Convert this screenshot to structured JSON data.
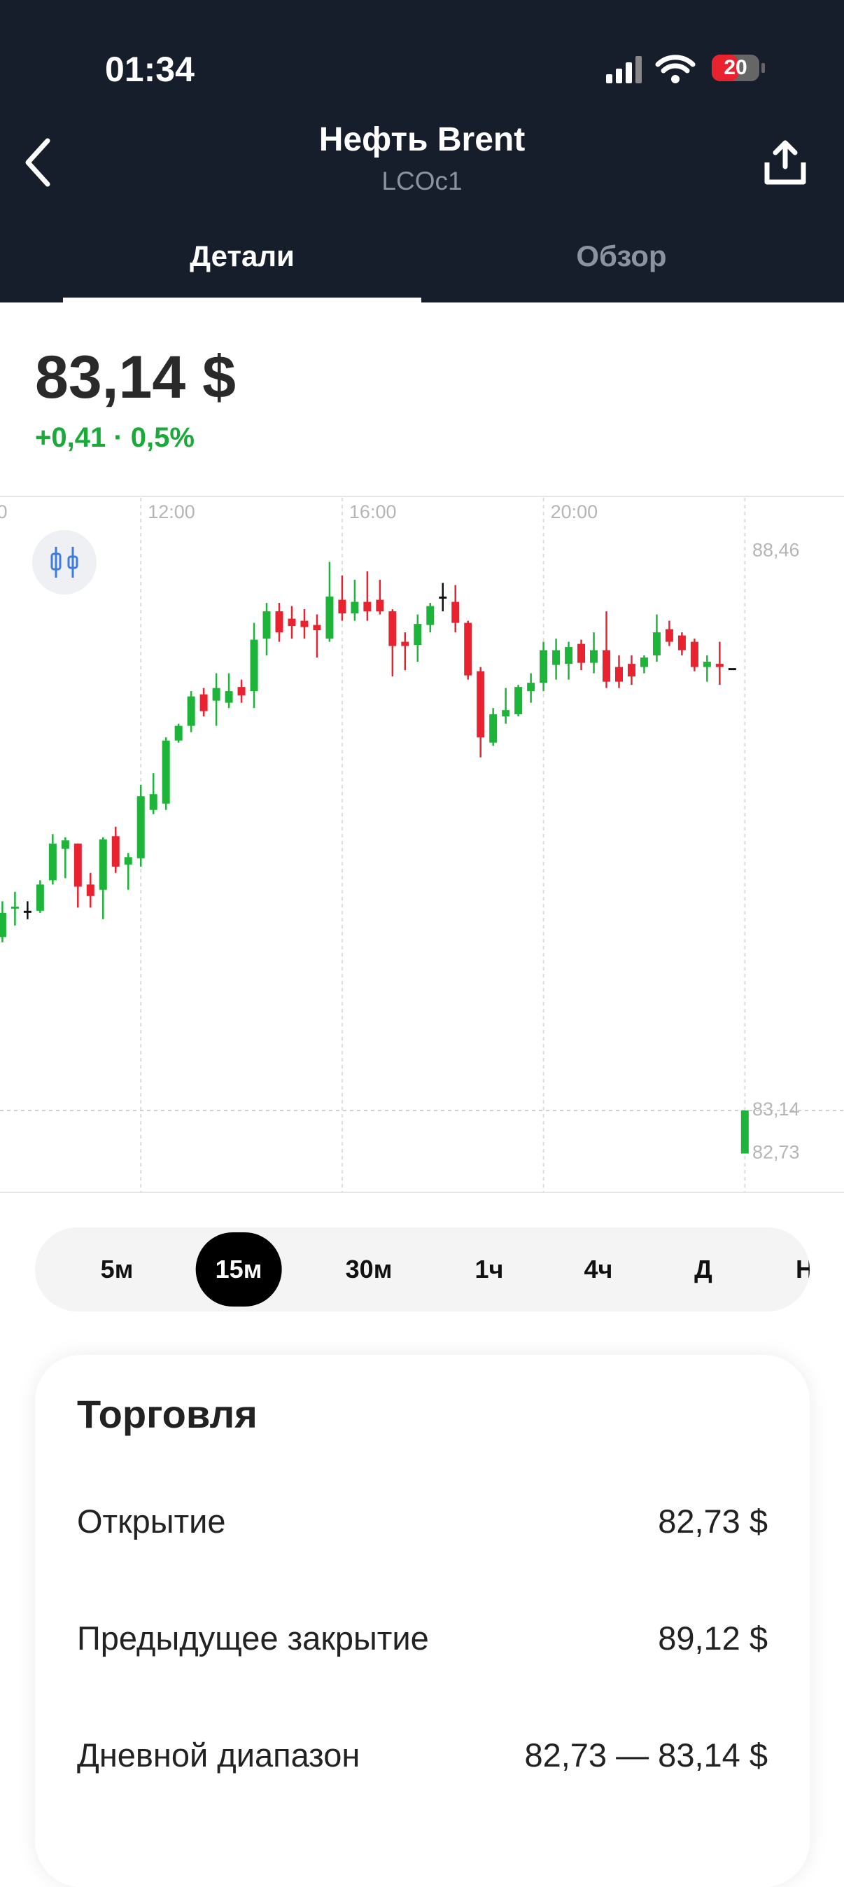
{
  "status_bar": {
    "time": "01:34",
    "battery": "20"
  },
  "header": {
    "title": "Нефть Brent",
    "subtitle": "LCOc1"
  },
  "tabs": [
    "Детали",
    "Обзор"
  ],
  "quote": {
    "price": "83,14 $",
    "change": "+0,41 · 0,5%"
  },
  "chart_data": {
    "type": "candlestick",
    "up_color": "#1db43a",
    "down_color": "#e8232f",
    "flat_color": "#111111",
    "xlim": [
      -0.19,
      66.88
    ],
    "ylim": [
      82.36,
      88.97
    ],
    "xticks": [
      {
        "value": -1,
        "label": "0"
      },
      {
        "value": 11,
        "label": "12:00"
      },
      {
        "value": 27,
        "label": "16:00"
      },
      {
        "value": 43,
        "label": "20:00"
      }
    ],
    "yticks": [
      {
        "value": 88.46,
        "label": "88,46"
      },
      {
        "value": 83.14,
        "label": "83,14"
      },
      {
        "value": 82.73,
        "label": "82,73"
      }
    ],
    "candles": [
      [
        84.79,
        85.13,
        84.74,
        85.02
      ],
      [
        85.07,
        85.22,
        84.9,
        85.08
      ],
      [
        85.04,
        85.13,
        84.96,
        85.04
      ],
      [
        85.04,
        85.33,
        85.02,
        85.29
      ],
      [
        85.33,
        85.77,
        85.29,
        85.68
      ],
      [
        85.63,
        85.74,
        85.35,
        85.71
      ],
      [
        85.68,
        85.68,
        85.07,
        85.27
      ],
      [
        85.29,
        85.4,
        85.07,
        85.18
      ],
      [
        85.24,
        85.74,
        84.96,
        85.72
      ],
      [
        85.75,
        85.84,
        85.4,
        85.46
      ],
      [
        85.48,
        85.59,
        85.24,
        85.55
      ],
      [
        85.54,
        86.24,
        85.46,
        86.13
      ],
      [
        86.0,
        86.35,
        85.96,
        86.15
      ],
      [
        86.06,
        86.69,
        86.0,
        86.66
      ],
      [
        86.66,
        86.82,
        86.64,
        86.8
      ],
      [
        86.8,
        87.13,
        86.74,
        87.08
      ],
      [
        87.1,
        87.16,
        86.89,
        86.94
      ],
      [
        87.04,
        87.3,
        86.8,
        87.16
      ],
      [
        87.02,
        87.3,
        86.97,
        87.13
      ],
      [
        87.17,
        87.24,
        87.02,
        87.09
      ],
      [
        87.13,
        87.78,
        86.97,
        87.62
      ],
      [
        87.63,
        87.97,
        87.47,
        87.89
      ],
      [
        87.89,
        87.97,
        87.6,
        87.69
      ],
      [
        87.82,
        87.94,
        87.63,
        87.75
      ],
      [
        87.8,
        87.91,
        87.63,
        87.74
      ],
      [
        87.76,
        87.86,
        87.45,
        87.71
      ],
      [
        87.63,
        88.36,
        87.6,
        88.03
      ],
      [
        88.0,
        88.23,
        87.8,
        87.87
      ],
      [
        87.87,
        88.19,
        87.8,
        87.98
      ],
      [
        87.98,
        88.27,
        87.8,
        87.89
      ],
      [
        88.0,
        88.19,
        87.86,
        87.89
      ],
      [
        87.89,
        87.91,
        87.27,
        87.56
      ],
      [
        87.6,
        87.69,
        87.33,
        87.56
      ],
      [
        87.57,
        87.86,
        87.41,
        87.77
      ],
      [
        87.76,
        87.97,
        87.69,
        87.94
      ],
      [
        88.03,
        88.16,
        87.89,
        88.03
      ],
      [
        87.98,
        88.14,
        87.69,
        87.78
      ],
      [
        87.78,
        87.8,
        87.24,
        87.28
      ],
      [
        87.32,
        87.36,
        86.5,
        86.69
      ],
      [
        86.64,
        86.97,
        86.61,
        86.91
      ],
      [
        86.89,
        87.16,
        86.82,
        86.95
      ],
      [
        86.91,
        87.19,
        86.89,
        87.17
      ],
      [
        87.13,
        87.3,
        87.02,
        87.21
      ],
      [
        87.21,
        87.6,
        87.13,
        87.52
      ],
      [
        87.38,
        87.63,
        87.24,
        87.52
      ],
      [
        87.39,
        87.6,
        87.24,
        87.55
      ],
      [
        87.58,
        87.62,
        87.33,
        87.4
      ],
      [
        87.4,
        87.69,
        87.3,
        87.52
      ],
      [
        87.52,
        87.89,
        87.16,
        87.22
      ],
      [
        87.36,
        87.47,
        87.16,
        87.22
      ],
      [
        87.39,
        87.47,
        87.19,
        87.27
      ],
      [
        87.36,
        87.47,
        87.3,
        87.45
      ],
      [
        87.47,
        87.86,
        87.41,
        87.69
      ],
      [
        87.72,
        87.8,
        87.56,
        87.6
      ],
      [
        87.66,
        87.69,
        87.47,
        87.52
      ],
      [
        87.6,
        87.63,
        87.32,
        87.36
      ],
      [
        87.36,
        87.47,
        87.22,
        87.41
      ],
      [
        87.39,
        87.6,
        87.19,
        87.36
      ],
      [
        87.35,
        87.35,
        87.35,
        87.35
      ],
      [
        82.73,
        83.14,
        82.73,
        83.14
      ]
    ]
  },
  "timeframes": [
    "5м",
    "15м",
    "30м",
    "1ч",
    "4ч",
    "Д",
    "Н"
  ],
  "trading": {
    "title": "Торговля",
    "rows": [
      [
        "Открытие",
        "82,73 $"
      ],
      [
        "Предыдущее закрытие",
        "89,12 $"
      ],
      [
        "Дневной диапазон",
        "82,73 — 83,14 $"
      ]
    ]
  }
}
